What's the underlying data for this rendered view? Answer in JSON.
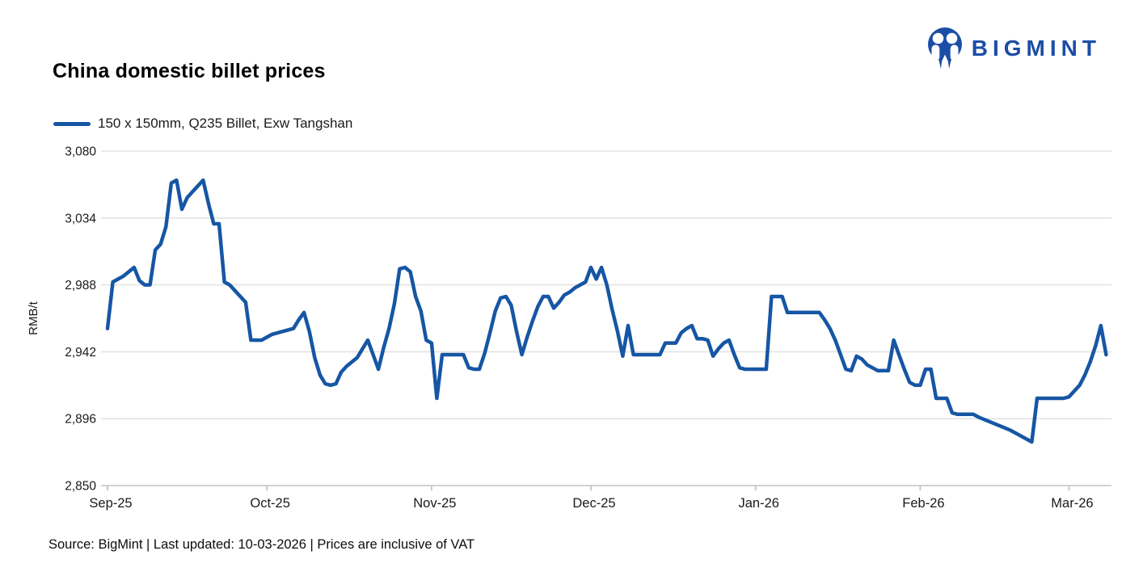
{
  "header": {
    "title": "China domestic billet prices"
  },
  "logo": {
    "text": "BIGMINT",
    "color": "#1b4da6"
  },
  "legend": {
    "label": "150 x 150mm, Q235 Billet, Exw Tangshan",
    "line_color": "#1656a4"
  },
  "footer": {
    "text": "Source: BigMint | Last updated: 10-03-2026 | Prices are inclusive of VAT"
  },
  "chart_data": {
    "type": "line",
    "title": "China domestic billet prices",
    "ylabel": "RMB/t",
    "ylim": [
      2850,
      3080
    ],
    "yticks": [
      2850,
      2896,
      2942,
      2988,
      3034,
      3080
    ],
    "grid": "horizontal",
    "legend_position": "top-left",
    "x_axis": {
      "unit": "days from 2025-09-01",
      "lim": [
        0,
        189
      ],
      "ticks": [
        {
          "pos": 0,
          "label": "Sep-25"
        },
        {
          "pos": 30,
          "label": "Oct-25"
        },
        {
          "pos": 61,
          "label": "Nov-25"
        },
        {
          "pos": 91,
          "label": "Dec-25"
        },
        {
          "pos": 122,
          "label": "Jan-26"
        },
        {
          "pos": 153,
          "label": "Feb-26"
        },
        {
          "pos": 181,
          "label": "Mar-26"
        }
      ]
    },
    "series": [
      {
        "name": "150 x 150mm, Q235 Billet, Exw Tangshan",
        "color": "#1656a4",
        "points": [
          [
            0,
            2958
          ],
          [
            1,
            2990
          ],
          [
            2,
            2992
          ],
          [
            3,
            2994
          ],
          [
            4,
            2997
          ],
          [
            5,
            3000
          ],
          [
            6,
            2991
          ],
          [
            7,
            2988
          ],
          [
            8,
            2988
          ],
          [
            9,
            3012
          ],
          [
            10,
            3016
          ],
          [
            11,
            3028
          ],
          [
            12,
            3058
          ],
          [
            13,
            3060
          ],
          [
            14,
            3040
          ],
          [
            15,
            3048
          ],
          [
            16,
            3052
          ],
          [
            17,
            3056
          ],
          [
            18,
            3060
          ],
          [
            19,
            3044
          ],
          [
            20,
            3030
          ],
          [
            21,
            3030
          ],
          [
            22,
            2990
          ],
          [
            23,
            2988
          ],
          [
            24,
            2984
          ],
          [
            25,
            2980
          ],
          [
            26,
            2976
          ],
          [
            27,
            2950
          ],
          [
            28,
            2950
          ],
          [
            29,
            2950
          ],
          [
            30,
            2952
          ],
          [
            31,
            2954
          ],
          [
            32,
            2955
          ],
          [
            33,
            2956
          ],
          [
            34,
            2957
          ],
          [
            35,
            2958
          ],
          [
            36,
            2964
          ],
          [
            37,
            2969
          ],
          [
            38,
            2956
          ],
          [
            39,
            2938
          ],
          [
            40,
            2926
          ],
          [
            41,
            2920
          ],
          [
            42,
            2919
          ],
          [
            43,
            2920
          ],
          [
            44,
            2928
          ],
          [
            45,
            2932
          ],
          [
            46,
            2935
          ],
          [
            47,
            2938
          ],
          [
            48,
            2944
          ],
          [
            49,
            2950
          ],
          [
            50,
            2940
          ],
          [
            51,
            2930
          ],
          [
            52,
            2945
          ],
          [
            53,
            2958
          ],
          [
            54,
            2975
          ],
          [
            55,
            2999
          ],
          [
            56,
            3000
          ],
          [
            57,
            2997
          ],
          [
            58,
            2980
          ],
          [
            59,
            2970
          ],
          [
            60,
            2950
          ],
          [
            61,
            2948
          ],
          [
            62,
            2910
          ],
          [
            63,
            2940
          ],
          [
            64,
            2940
          ],
          [
            65,
            2940
          ],
          [
            66,
            2940
          ],
          [
            67,
            2940
          ],
          [
            68,
            2931
          ],
          [
            69,
            2930
          ],
          [
            70,
            2930
          ],
          [
            71,
            2941
          ],
          [
            72,
            2955
          ],
          [
            73,
            2970
          ],
          [
            74,
            2979
          ],
          [
            75,
            2980
          ],
          [
            76,
            2974
          ],
          [
            77,
            2956
          ],
          [
            78,
            2940
          ],
          [
            79,
            2952
          ],
          [
            80,
            2963
          ],
          [
            81,
            2973
          ],
          [
            82,
            2980
          ],
          [
            83,
            2980
          ],
          [
            84,
            2972
          ],
          [
            85,
            2976
          ],
          [
            86,
            2981
          ],
          [
            87,
            2983
          ],
          [
            88,
            2986
          ],
          [
            89,
            2988
          ],
          [
            90,
            2990
          ],
          [
            91,
            3000
          ],
          [
            92,
            2992
          ],
          [
            93,
            3000
          ],
          [
            94,
            2988
          ],
          [
            95,
            2971
          ],
          [
            96,
            2956
          ],
          [
            97,
            2939
          ],
          [
            98,
            2960
          ],
          [
            99,
            2940
          ],
          [
            100,
            2940
          ],
          [
            101,
            2940
          ],
          [
            102,
            2940
          ],
          [
            103,
            2940
          ],
          [
            104,
            2940
          ],
          [
            105,
            2948
          ],
          [
            106,
            2948
          ],
          [
            107,
            2948
          ],
          [
            108,
            2955
          ],
          [
            109,
            2958
          ],
          [
            110,
            2960
          ],
          [
            111,
            2951
          ],
          [
            112,
            2951
          ],
          [
            113,
            2950
          ],
          [
            114,
            2939
          ],
          [
            115,
            2944
          ],
          [
            116,
            2948
          ],
          [
            117,
            2950
          ],
          [
            118,
            2940
          ],
          [
            119,
            2931
          ],
          [
            120,
            2930
          ],
          [
            121,
            2930
          ],
          [
            122,
            2930
          ],
          [
            123,
            2930
          ],
          [
            124,
            2930
          ],
          [
            125,
            2980
          ],
          [
            126,
            2980
          ],
          [
            127,
            2980
          ],
          [
            128,
            2969
          ],
          [
            129,
            2969
          ],
          [
            130,
            2969
          ],
          [
            131,
            2969
          ],
          [
            132,
            2969
          ],
          [
            133,
            2969
          ],
          [
            134,
            2969
          ],
          [
            135,
            2964
          ],
          [
            136,
            2958
          ],
          [
            137,
            2950
          ],
          [
            138,
            2940
          ],
          [
            139,
            2930
          ],
          [
            140,
            2929
          ],
          [
            141,
            2939
          ],
          [
            142,
            2937
          ],
          [
            143,
            2933
          ],
          [
            144,
            2931
          ],
          [
            145,
            2929
          ],
          [
            146,
            2929
          ],
          [
            147,
            2929
          ],
          [
            148,
            2950
          ],
          [
            149,
            2940
          ],
          [
            150,
            2930
          ],
          [
            151,
            2921
          ],
          [
            152,
            2919
          ],
          [
            153,
            2919
          ],
          [
            154,
            2930
          ],
          [
            155,
            2930
          ],
          [
            156,
            2910
          ],
          [
            157,
            2910
          ],
          [
            158,
            2910
          ],
          [
            159,
            2900
          ],
          [
            160,
            2899
          ],
          [
            161,
            2899
          ],
          [
            162,
            2899
          ],
          [
            163,
            2899
          ],
          [
            164,
            2897
          ],
          [
            166,
            2894
          ],
          [
            168,
            2891
          ],
          [
            170,
            2888
          ],
          [
            172,
            2884
          ],
          [
            174,
            2880
          ],
          [
            175,
            2910
          ],
          [
            176,
            2910
          ],
          [
            177,
            2910
          ],
          [
            178,
            2910
          ],
          [
            179,
            2910
          ],
          [
            180,
            2910
          ],
          [
            181,
            2911
          ],
          [
            182,
            2915
          ],
          [
            183,
            2919
          ],
          [
            184,
            2926
          ],
          [
            185,
            2935
          ],
          [
            186,
            2946
          ],
          [
            187,
            2960
          ],
          [
            188,
            2940
          ]
        ]
      }
    ]
  }
}
